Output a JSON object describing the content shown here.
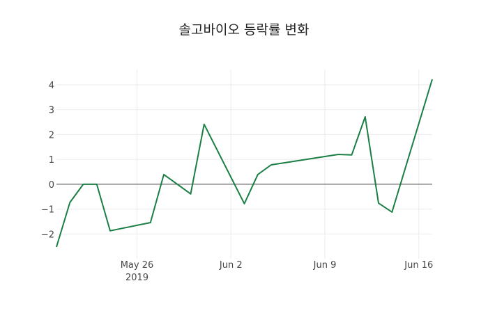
{
  "chart_data": {
    "type": "line",
    "title": "솔고바이오 등락률 변화",
    "xlabel": "",
    "ylabel": "",
    "x": [
      "2019-05-20",
      "2019-05-21",
      "2019-05-22",
      "2019-05-23",
      "2019-05-24",
      "2019-05-27",
      "2019-05-28",
      "2019-05-30",
      "2019-05-31",
      "2019-06-03",
      "2019-06-04",
      "2019-06-05",
      "2019-06-10",
      "2019-06-11",
      "2019-06-12",
      "2019-06-13",
      "2019-06-14",
      "2019-06-17"
    ],
    "series": [
      {
        "name": "등락률",
        "color": "#1a7f44",
        "values": [
          -2.52,
          -0.73,
          0.0,
          0.0,
          -1.87,
          -1.54,
          0.39,
          -0.39,
          2.41,
          -0.78,
          0.39,
          0.78,
          1.2,
          1.18,
          2.71,
          -0.76,
          -1.12,
          4.22
        ]
      }
    ],
    "x_ticks": [
      {
        "date": "2019-05-26",
        "label": "May 26",
        "sublabel": "2019"
      },
      {
        "date": "2019-06-02",
        "label": "Jun 2",
        "sublabel": ""
      },
      {
        "date": "2019-06-09",
        "label": "Jun 9",
        "sublabel": ""
      },
      {
        "date": "2019-06-16",
        "label": "Jun 16",
        "sublabel": ""
      }
    ],
    "y_ticks": [
      -2,
      -1,
      0,
      1,
      2,
      3,
      4
    ],
    "y_tick_labels": [
      "−2",
      "−1",
      "0",
      "1",
      "2",
      "3",
      "4"
    ],
    "ylim": [
      -2.52,
      4.22
    ],
    "xlim": [
      "2019-05-20",
      "2019-06-17"
    ],
    "grid": true,
    "zero_line": true,
    "legend": "none"
  }
}
